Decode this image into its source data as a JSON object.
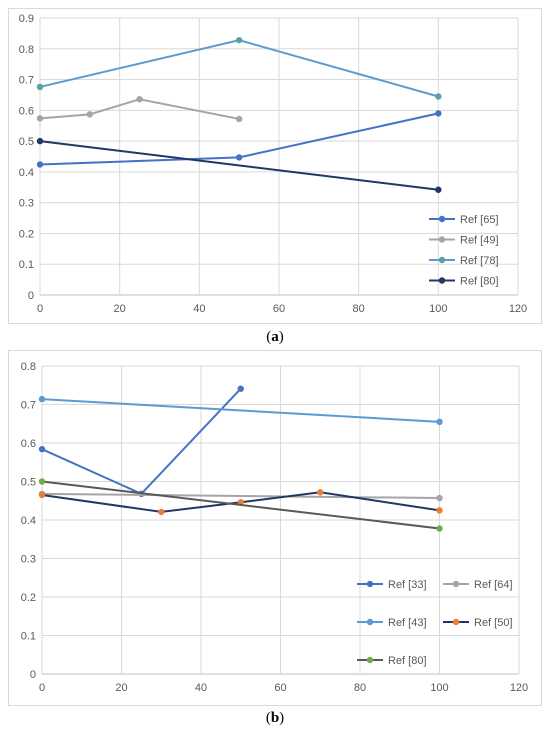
{
  "chart_data": [
    {
      "type": "line",
      "caption": {
        "open": "(",
        "letter": "a",
        "close": ")"
      },
      "xlim": [
        0,
        120
      ],
      "ylim": [
        0,
        0.9
      ],
      "x_ticks": [
        0,
        20,
        40,
        60,
        80,
        100,
        120
      ],
      "y_ticks": [
        0,
        0.1,
        0.2,
        0.3,
        0.4,
        0.5,
        0.6,
        0.7,
        0.8,
        0.9
      ],
      "grid": true,
      "legend_position": "bottom-right",
      "legend_columns": 1,
      "series": [
        {
          "name": "Ref [65]",
          "color": "#4472c4",
          "points": [
            [
              0,
              0.424
            ],
            [
              50,
              0.447
            ],
            [
              100,
              0.59
            ]
          ]
        },
        {
          "name": "Ref [49]",
          "color": "#a5a5a5",
          "points": [
            [
              0,
              0.574
            ],
            [
              12.5,
              0.587
            ],
            [
              25,
              0.636
            ],
            [
              50,
              0.572
            ]
          ]
        },
        {
          "name": "Ref [78]",
          "color": "#5b9bd5",
          "marker_color": "#5aa29e",
          "points": [
            [
              0,
              0.676
            ],
            [
              50,
              0.828
            ],
            [
              100,
              0.645
            ]
          ]
        },
        {
          "name": "Ref [80]",
          "color": "#203864",
          "points": [
            [
              0,
              0.5
            ],
            [
              100,
              0.342
            ]
          ]
        }
      ]
    },
    {
      "type": "line",
      "caption": {
        "open": "(",
        "letter": "b",
        "close": ")"
      },
      "xlim": [
        0,
        120
      ],
      "ylim": [
        0,
        0.8
      ],
      "x_ticks": [
        0,
        20,
        40,
        60,
        80,
        100,
        120
      ],
      "y_ticks": [
        0,
        0.1,
        0.2,
        0.3,
        0.4,
        0.5,
        0.6,
        0.7,
        0.8
      ],
      "grid": true,
      "legend_position": "bottom-right",
      "legend_columns": 2,
      "series": [
        {
          "name": "Ref [33]",
          "color": "#4472c4",
          "points": [
            [
              0,
              0.584
            ],
            [
              25,
              0.468
            ],
            [
              50,
              0.741
            ]
          ]
        },
        {
          "name": "Ref [64]",
          "color": "#a5a5a5",
          "points": [
            [
              0,
              0.468
            ],
            [
              100,
              0.457
            ]
          ]
        },
        {
          "name": "Ref [43]",
          "color": "#5b9bd5",
          "points": [
            [
              0,
              0.714
            ],
            [
              100,
              0.655
            ]
          ]
        },
        {
          "name": "Ref [50]",
          "color": "#203864",
          "marker_color": "#ed7d31",
          "points": [
            [
              0,
              0.465
            ],
            [
              30,
              0.421
            ],
            [
              50,
              0.446
            ],
            [
              70,
              0.472
            ],
            [
              100,
              0.425
            ]
          ]
        },
        {
          "name": "Ref [80]",
          "color": "#595959",
          "marker_color": "#70ad47",
          "points": [
            [
              0,
              0.5
            ],
            [
              100,
              0.378
            ]
          ]
        }
      ]
    }
  ]
}
